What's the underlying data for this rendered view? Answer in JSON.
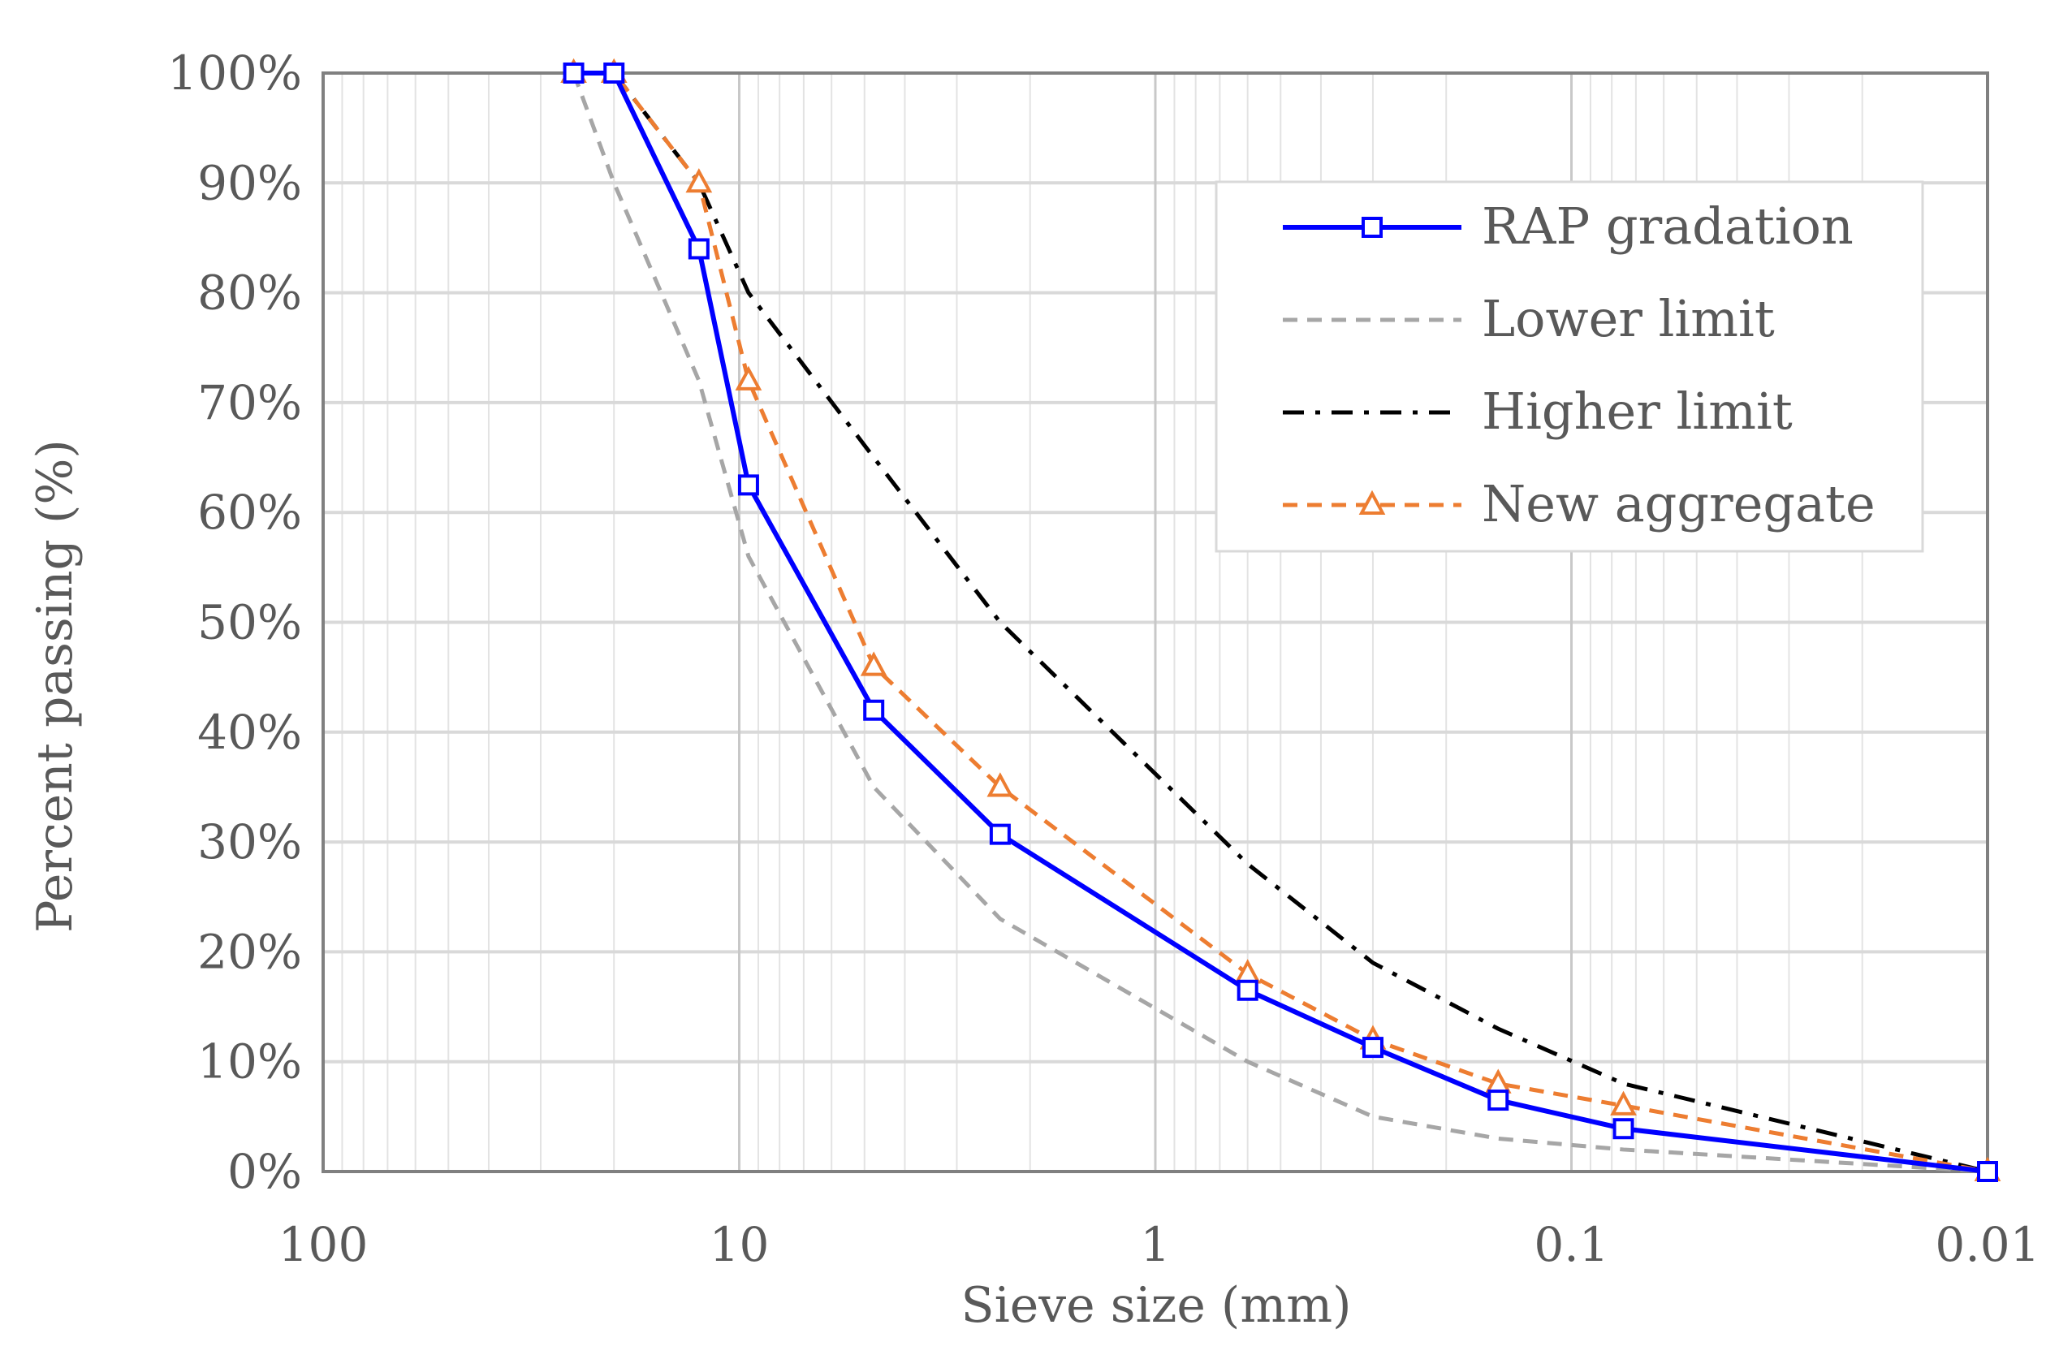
{
  "chart_data": {
    "type": "line",
    "title": "",
    "xlabel": "Sieve size (mm)",
    "ylabel": "Percent passing (%)",
    "x_scale": "log",
    "x_reversed": true,
    "xlim": [
      100,
      0.01
    ],
    "ylim": [
      0,
      100
    ],
    "x_tick_values": [
      100,
      10,
      1,
      0.1,
      0.01
    ],
    "x_tick_labels": [
      "100",
      "10",
      "1",
      "0.1",
      "0.01"
    ],
    "y_tick_values": [
      0,
      10,
      20,
      30,
      40,
      50,
      60,
      70,
      80,
      90,
      100
    ],
    "y_tick_labels": [
      "0%",
      "10%",
      "20%",
      "30%",
      "40%",
      "50%",
      "60%",
      "70%",
      "80%",
      "90%",
      "100%"
    ],
    "grid": true,
    "legend_position": "top-right",
    "series": [
      {
        "name": "RAP gradation",
        "color": "#0000ff",
        "line_style": "solid",
        "marker": "square",
        "x": [
          25,
          20,
          12.5,
          9.5,
          4.75,
          2.36,
          0.6,
          0.3,
          0.15,
          0.075,
          0.01
        ],
        "y": [
          100,
          100,
          84,
          62.5,
          42,
          30.7,
          16.5,
          11.3,
          6.5,
          3.9,
          0
        ]
      },
      {
        "name": "Lower limit",
        "color": "#a6a6a6",
        "line_style": "dashed",
        "marker": "none",
        "x": [
          25,
          20,
          12.5,
          9.5,
          4.75,
          2.36,
          0.6,
          0.3,
          0.15,
          0.075,
          0.01
        ],
        "y": [
          100,
          90,
          72,
          56,
          35,
          23,
          10,
          5,
          3,
          2,
          0
        ]
      },
      {
        "name": "Higher limit",
        "color": "#000000",
        "line_style": "dashdot",
        "marker": "none",
        "x": [
          20,
          12.5,
          9.5,
          4.75,
          2.36,
          0.6,
          0.3,
          0.15,
          0.075,
          0.01
        ],
        "y": [
          100,
          90,
          80,
          65,
          50,
          28,
          19,
          13,
          8,
          0
        ]
      },
      {
        "name": "New aggregate",
        "color": "#ed7d31",
        "line_style": "dashed",
        "marker": "triangle",
        "x": [
          25,
          20,
          12.5,
          9.5,
          4.75,
          2.36,
          0.6,
          0.3,
          0.15,
          0.075,
          0.01
        ],
        "y": [
          100,
          100,
          90,
          72,
          46,
          35,
          18,
          12,
          8,
          6,
          0
        ]
      }
    ]
  }
}
